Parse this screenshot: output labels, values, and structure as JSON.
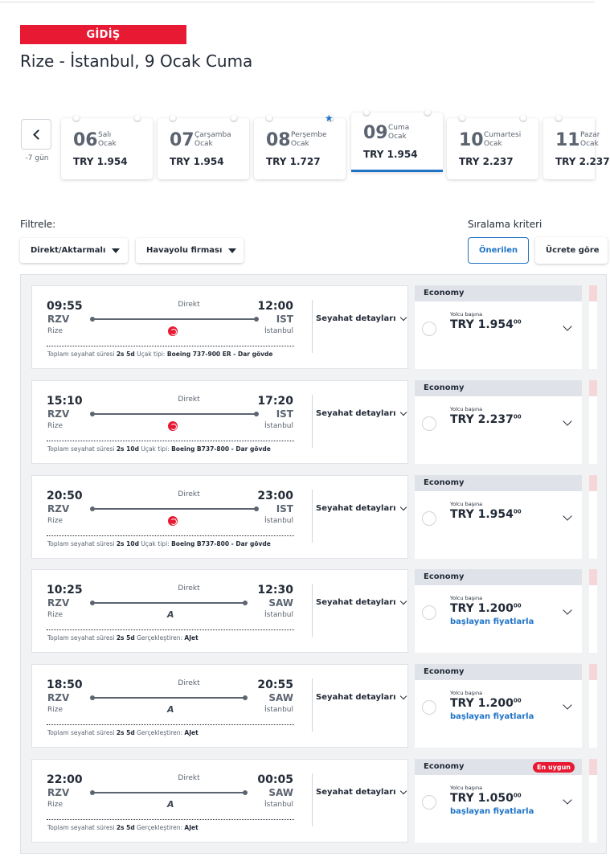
{
  "header": {
    "direction": "GİDİŞ",
    "route_title": "Rize - İstanbul, 9 Ocak Cuma"
  },
  "date_strip": {
    "prev_label": "-7 gün",
    "dates": [
      {
        "day": "06",
        "weekday": "Salı",
        "month": "Ocak",
        "price": "TRY 1.954",
        "selected": false
      },
      {
        "day": "07",
        "weekday": "Çarşamba",
        "month": "Ocak",
        "price": "TRY 1.954",
        "selected": false
      },
      {
        "day": "08",
        "weekday": "Perşembe",
        "month": "Ocak",
        "price": "TRY 1.727",
        "selected": false,
        "starred": true
      },
      {
        "day": "09",
        "weekday": "Cuma",
        "month": "Ocak",
        "price": "TRY 1.954",
        "selected": true
      },
      {
        "day": "10",
        "weekday": "Cumartesi",
        "month": "Ocak",
        "price": "TRY 2.237",
        "selected": false
      },
      {
        "day": "11",
        "weekday": "Pazar",
        "month": "Ocak",
        "price": "TRY 2.237",
        "selected": false
      }
    ]
  },
  "filters": {
    "label": "Filtrele:",
    "direct_dropdown": "Direkt/Aktarmalı",
    "airline_dropdown": "Havayolu firması"
  },
  "sort": {
    "label": "Sıralama kriteri",
    "recommended": "Önerilen",
    "by_price": "Ücrete göre"
  },
  "common": {
    "direct": "Direkt",
    "details": "Seyahat detayları",
    "total_time_label": "Toplam seyahat süresi",
    "aircraft_label": "Uçak tipi:",
    "operated_label": "Gerçekleştiren:",
    "cabin": "Economy",
    "per_passenger": "Yolcu başına",
    "from_prices": "başlayan fiyatlarla",
    "best_price": "En uygun"
  },
  "flights": [
    {
      "dep_time": "09:55",
      "dep_code": "RZV",
      "dep_city": "Rize",
      "arr_time": "12:00",
      "arr_code": "IST",
      "arr_city": "İstanbul",
      "duration": "2s 5d",
      "extra_label": "Uçak tipi:",
      "extra_value": "Boeing 737-900 ER - Dar gövde",
      "airline_icon": "thy-logo-icon",
      "price": "TRY 1.954",
      "price_cents": "00",
      "from": false,
      "best": false
    },
    {
      "dep_time": "15:10",
      "dep_code": "RZV",
      "dep_city": "Rize",
      "arr_time": "17:20",
      "arr_code": "IST",
      "arr_city": "İstanbul",
      "duration": "2s 10d",
      "extra_label": "Uçak tipi:",
      "extra_value": "Boeing B737-800 - Dar gövde",
      "airline_icon": "thy-logo-icon",
      "price": "TRY 2.237",
      "price_cents": "00",
      "from": false,
      "best": false
    },
    {
      "dep_time": "20:50",
      "dep_code": "RZV",
      "dep_city": "Rize",
      "arr_time": "23:00",
      "arr_code": "IST",
      "arr_city": "İstanbul",
      "duration": "2s 10d",
      "extra_label": "Uçak tipi:",
      "extra_value": "Boeing B737-800 - Dar gövde",
      "airline_icon": "thy-logo-icon",
      "price": "TRY 1.954",
      "price_cents": "00",
      "from": false,
      "best": false
    },
    {
      "dep_time": "10:25",
      "dep_code": "RZV",
      "dep_city": "Rize",
      "arr_time": "12:30",
      "arr_code": "SAW",
      "arr_city": "İstanbul",
      "duration": "2s 5d",
      "extra_label": "Gerçekleştiren:",
      "extra_value": "AJet",
      "airline_icon": "ajet-logo-icon",
      "price": "TRY 1.200",
      "price_cents": "00",
      "from": true,
      "best": false
    },
    {
      "dep_time": "18:50",
      "dep_code": "RZV",
      "dep_city": "Rize",
      "arr_time": "20:55",
      "arr_code": "SAW",
      "arr_city": "İstanbul",
      "duration": "2s 5d",
      "extra_label": "Gerçekleştiren:",
      "extra_value": "AJet",
      "airline_icon": "ajet-logo-icon",
      "price": "TRY 1.200",
      "price_cents": "00",
      "from": true,
      "best": false
    },
    {
      "dep_time": "22:00",
      "dep_code": "RZV",
      "dep_city": "Rize",
      "arr_time": "00:05",
      "arr_code": "SAW",
      "arr_city": "İstanbul",
      "duration": "2s 5d",
      "extra_label": "Gerçekleştiren:",
      "extra_value": "AJet",
      "airline_icon": "ajet-logo-icon",
      "price": "TRY 1.050",
      "price_cents": "00",
      "from": true,
      "best": true
    }
  ],
  "colors": {
    "brand_red": "#e81932",
    "accent_blue": "#1f73c7"
  }
}
